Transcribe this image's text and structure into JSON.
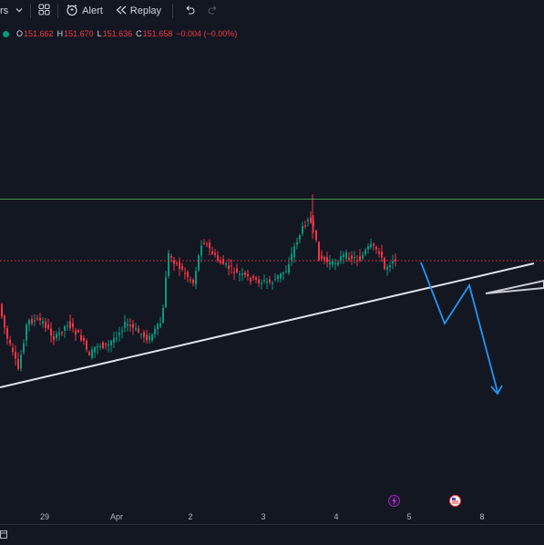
{
  "toolbar": {
    "indicators_label": "rs",
    "alert_label": "Alert",
    "replay_label": "Replay"
  },
  "ohlc": {
    "open_key": "O",
    "open": "151.662",
    "high_key": "H",
    "high": "151.670",
    "low_key": "L",
    "low": "151.636",
    "close_key": "C",
    "close": "151.658",
    "change": "−0.004 (−0.00%)"
  },
  "x_axis": {
    "ticks": [
      "29",
      "Apr",
      "2",
      "3",
      "4",
      "5",
      "8"
    ]
  },
  "colors": {
    "background": "#131722",
    "bull": "#089981",
    "bear": "#f23645",
    "resistance": "#4caf50",
    "trendline": "#e0e3eb",
    "projection": "#2196f3"
  },
  "icons": {
    "layout": "grid-icon",
    "alert": "alarm-clock-icon",
    "replay": "rewind-icon",
    "undo": "undo-icon",
    "redo": "redo-icon",
    "event_1": "lightning-icon",
    "event_2": "us-flag-icon"
  }
}
